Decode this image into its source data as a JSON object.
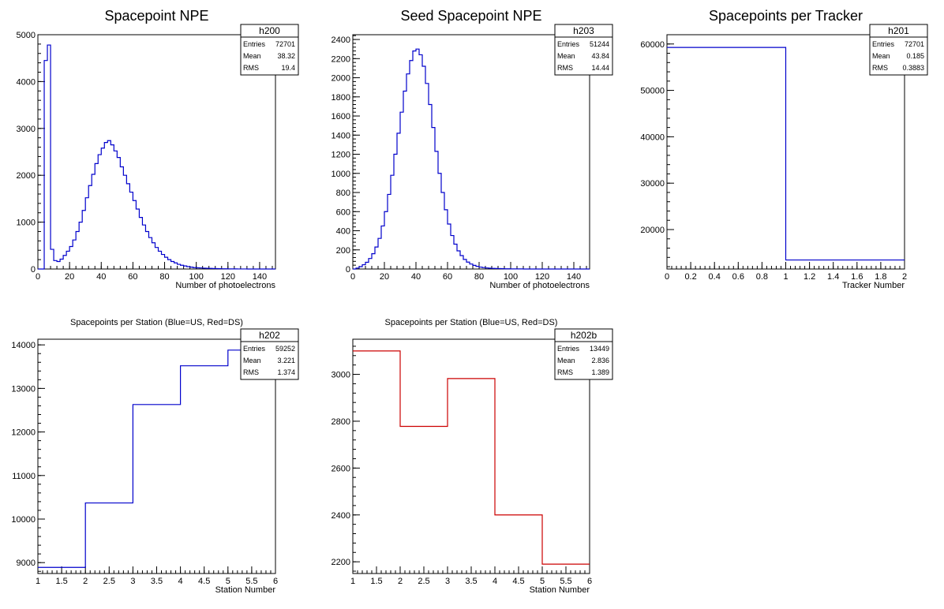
{
  "chart_data": [
    {
      "id": "h200",
      "type": "histogram",
      "title": "Spacepoint NPE",
      "xlabel": "Number of photoelectrons",
      "ylabel": "",
      "xlim": [
        0,
        150
      ],
      "ylim": [
        0,
        5000
      ],
      "bin_width": 2,
      "x_start": 0,
      "x_ticks": [
        "0",
        "20",
        "40",
        "60",
        "80",
        "100",
        "120",
        "140"
      ],
      "y_ticks": [
        "0",
        "1000",
        "2000",
        "3000",
        "4000",
        "5000"
      ],
      "line_color": "#0000cc",
      "values": [
        0,
        0,
        4450,
        4780,
        420,
        180,
        160,
        210,
        290,
        380,
        480,
        620,
        800,
        1000,
        1250,
        1520,
        1780,
        2020,
        2250,
        2440,
        2580,
        2700,
        2740,
        2650,
        2520,
        2380,
        2180,
        2000,
        1820,
        1640,
        1460,
        1280,
        1100,
        940,
        800,
        670,
        560,
        460,
        380,
        310,
        250,
        200,
        160,
        130,
        100,
        80,
        65,
        50,
        40,
        30,
        25,
        22,
        18,
        15,
        12,
        10,
        8,
        6,
        5,
        4,
        3,
        2,
        2,
        1,
        1,
        1,
        0,
        0,
        0,
        0,
        0,
        0,
        0,
        0,
        0
      ],
      "stats": {
        "name": "h200",
        "rows": [
          [
            "Entries",
            "72701"
          ],
          [
            "Mean",
            "38.32"
          ],
          [
            "RMS",
            "19.4"
          ]
        ]
      }
    },
    {
      "id": "h203",
      "type": "histogram",
      "title": "Seed Spacepoint NPE",
      "xlabel": "Number of photoelectrons",
      "ylabel": "",
      "xlim": [
        0,
        150
      ],
      "ylim": [
        0,
        2450
      ],
      "bin_width": 2,
      "x_start": 0,
      "x_ticks": [
        "0",
        "20",
        "40",
        "60",
        "80",
        "100",
        "120",
        "140"
      ],
      "y_ticks": [
        "0",
        "200",
        "400",
        "600",
        "800",
        "1000",
        "1200",
        "1400",
        "1600",
        "1800",
        "2000",
        "2200",
        "2400"
      ],
      "line_color": "#0000cc",
      "values": [
        0,
        10,
        25,
        45,
        70,
        110,
        160,
        230,
        320,
        450,
        600,
        780,
        980,
        1200,
        1420,
        1640,
        1860,
        2040,
        2180,
        2280,
        2300,
        2240,
        2120,
        1940,
        1720,
        1480,
        1230,
        1000,
        800,
        620,
        470,
        350,
        260,
        190,
        140,
        100,
        72,
        52,
        38,
        28,
        20,
        15,
        11,
        8,
        6,
        5,
        4,
        3,
        2,
        2,
        1,
        1,
        1,
        1,
        0,
        0,
        0,
        0,
        0,
        0,
        0,
        0,
        0,
        0,
        0,
        0,
        0,
        0,
        0,
        0,
        0,
        0,
        0,
        0,
        0
      ],
      "stats": {
        "name": "h203",
        "rows": [
          [
            "Entries",
            "51244"
          ],
          [
            "Mean",
            "43.84"
          ],
          [
            "RMS",
            "14.44"
          ]
        ]
      }
    },
    {
      "id": "h201",
      "type": "histogram",
      "title": "Spacepoints per Tracker",
      "xlabel": "Tracker Number",
      "ylabel": "",
      "xlim": [
        0,
        2
      ],
      "ylim": [
        11500,
        62000
      ],
      "bin_width": 1,
      "x_start": 0,
      "x_ticks": [
        "0",
        "0.2",
        "0.4",
        "0.6",
        "0.8",
        "1",
        "1.2",
        "1.4",
        "1.6",
        "1.8",
        "2"
      ],
      "y_ticks": [
        "20000",
        "30000",
        "40000",
        "50000",
        "60000"
      ],
      "line_color": "#0000cc",
      "values": [
        59252,
        13449
      ],
      "stats": {
        "name": "h201",
        "rows": [
          [
            "Entries",
            "72701"
          ],
          [
            "Mean",
            "0.185"
          ],
          [
            "RMS",
            "0.3883"
          ]
        ]
      }
    },
    {
      "id": "h202",
      "type": "histogram",
      "title": "Spacepoints per Station (Blue=US, Red=DS)",
      "xlabel": "Station Number",
      "ylabel": "",
      "xlim": [
        1,
        6
      ],
      "ylim": [
        8750,
        14130
      ],
      "bin_width": 1,
      "x_start": 1,
      "x_ticks": [
        "1",
        "1.5",
        "2",
        "2.5",
        "3",
        "3.5",
        "4",
        "4.5",
        "5",
        "5.5",
        "6"
      ],
      "y_ticks": [
        "9000",
        "10000",
        "11000",
        "12000",
        "13000",
        "14000"
      ],
      "line_color": "#0000cc",
      "values": [
        8890,
        10370,
        12630,
        13520,
        13880
      ],
      "stats": {
        "name": "h202",
        "rows": [
          [
            "Entries",
            "59252"
          ],
          [
            "Mean",
            "3.221"
          ],
          [
            "RMS",
            "1.374"
          ]
        ]
      }
    },
    {
      "id": "h202b",
      "type": "histogram",
      "title": "Spacepoints per Station (Blue=US, Red=DS)",
      "xlabel": "Station Number",
      "ylabel": "",
      "xlim": [
        1,
        6
      ],
      "ylim": [
        2150,
        3150
      ],
      "bin_width": 1,
      "x_start": 1,
      "x_ticks": [
        "1",
        "1.5",
        "2",
        "2.5",
        "3",
        "3.5",
        "4",
        "4.5",
        "5",
        "5.5",
        "6"
      ],
      "y_ticks": [
        "2200",
        "2400",
        "2600",
        "2800",
        "3000"
      ],
      "line_color": "#cc0000",
      "values": [
        3100,
        2778,
        2982,
        2400,
        2190
      ],
      "stats": {
        "name": "h202b",
        "rows": [
          [
            "Entries",
            "13449"
          ],
          [
            "Mean",
            "2.836"
          ],
          [
            "RMS",
            "1.389"
          ]
        ]
      }
    }
  ]
}
